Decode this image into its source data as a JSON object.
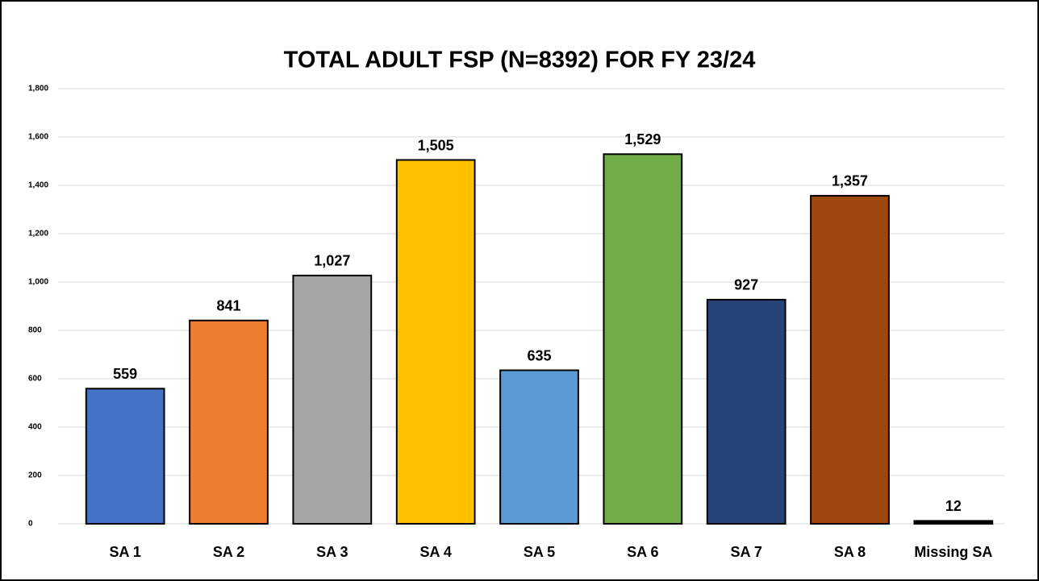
{
  "chart_data": {
    "type": "bar",
    "title": "TOTAL ADULT FSP (N=8392) FOR FY 23/24",
    "categories": [
      "SA 1",
      "SA 2",
      "SA 3",
      "SA 4",
      "SA 5",
      "SA 6",
      "SA 7",
      "SA 8",
      "Missing SA"
    ],
    "values": [
      559,
      841,
      1027,
      1505,
      635,
      1529,
      927,
      1357,
      12
    ],
    "value_labels": [
      "559",
      "841",
      "1,027",
      "1,505",
      "635",
      "1,529",
      "927",
      "1,357",
      "12"
    ],
    "colors": [
      "#4472c4",
      "#ed7d31",
      "#a5a5a5",
      "#ffc000",
      "#5b9bd5",
      "#70ad47",
      "#264478",
      "#9e480e",
      "#000000"
    ],
    "ylim": [
      0,
      1800
    ],
    "yticks": [
      0,
      200,
      400,
      600,
      800,
      {
        "value": 1000,
        "label": "1,000"
      },
      {
        "value": 1200,
        "label": "1,200"
      },
      {
        "value": 1400,
        "label": "1,400"
      },
      {
        "value": 1600,
        "label": "1,600"
      },
      {
        "value": 1800,
        "label": "1,800"
      }
    ],
    "grid": true
  }
}
